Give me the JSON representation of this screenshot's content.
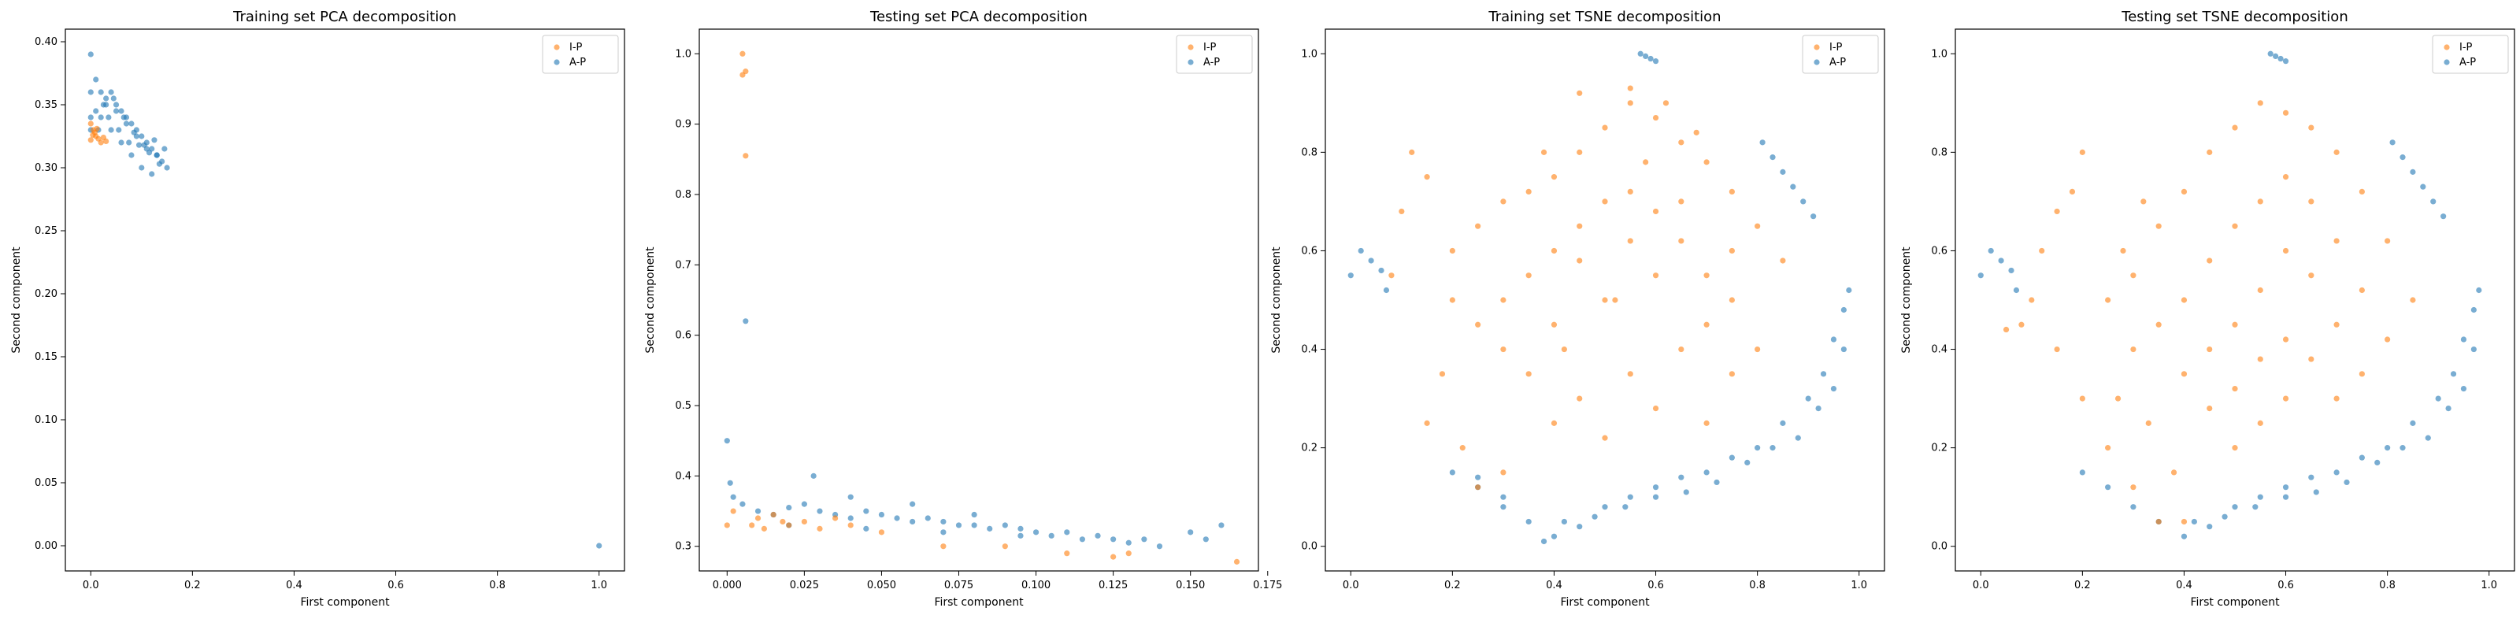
{
  "series_colors": {
    "I-P": "#ff7f0e",
    "A-P": "#1f77b4"
  },
  "chart_data": [
    {
      "type": "scatter",
      "title": "Training set PCA decomposition",
      "xlabel": "First component",
      "ylabel": "Second component",
      "xlim": [
        -0.05,
        1.05
      ],
      "ylim": [
        -0.02,
        0.41
      ],
      "xticks": [
        0.0,
        0.2,
        0.4,
        0.6,
        0.8,
        1.0
      ],
      "xtick_labels": [
        "0.0",
        "0.2",
        "0.4",
        "0.6",
        "0.8",
        "1.0"
      ],
      "yticks": [
        0.0,
        0.05,
        0.1,
        0.15,
        0.2,
        0.25,
        0.3,
        0.35,
        0.4
      ],
      "ytick_labels": [
        "0.00",
        "0.05",
        "0.10",
        "0.15",
        "0.20",
        "0.25",
        "0.30",
        "0.35",
        "0.40"
      ],
      "legend": [
        "I-P",
        "A-P"
      ],
      "legend_position": "top-right",
      "series": [
        {
          "name": "I-P",
          "x": [
            0.0,
            0.01,
            0.02,
            0.005,
            0.015,
            0.03,
            0.0,
            0.008,
            0.025,
            0.012,
            0.004
          ],
          "y": [
            0.322,
            0.325,
            0.32,
            0.33,
            0.323,
            0.321,
            0.335,
            0.328,
            0.324,
            0.331,
            0.326
          ]
        },
        {
          "name": "A-P",
          "x": [
            0.0,
            0.0,
            0.01,
            0.02,
            0.03,
            0.04,
            0.05,
            0.06,
            0.07,
            0.08,
            0.09,
            0.1,
            0.11,
            0.12,
            0.13,
            0.14,
            0.15,
            0.02,
            0.04,
            0.06,
            0.08,
            0.1,
            0.12,
            0.03,
            0.05,
            0.07,
            0.09,
            0.11,
            0.13,
            0.015,
            0.035,
            0.055,
            0.075,
            0.095,
            0.115,
            0.135,
            0.0,
            0.01,
            0.025,
            0.045,
            0.065,
            0.085,
            0.105,
            0.125,
            0.145,
            0.0,
            1.0
          ],
          "y": [
            0.39,
            0.36,
            0.37,
            0.36,
            0.35,
            0.36,
            0.35,
            0.345,
            0.34,
            0.335,
            0.33,
            0.325,
            0.32,
            0.315,
            0.31,
            0.305,
            0.3,
            0.34,
            0.33,
            0.32,
            0.31,
            0.3,
            0.295,
            0.355,
            0.345,
            0.335,
            0.325,
            0.315,
            0.31,
            0.33,
            0.34,
            0.33,
            0.32,
            0.318,
            0.312,
            0.303,
            0.34,
            0.345,
            0.35,
            0.355,
            0.34,
            0.328,
            0.318,
            0.322,
            0.315,
            0.33,
            0.0
          ]
        }
      ]
    },
    {
      "type": "scatter",
      "title": "Testing set PCA decomposition",
      "xlabel": "First component",
      "ylabel": "Second component",
      "xlim": [
        -0.009,
        0.172
      ],
      "ylim": [
        0.265,
        1.035
      ],
      "xticks": [
        0.0,
        0.025,
        0.05,
        0.075,
        0.1,
        0.125,
        0.15,
        0.175
      ],
      "xtick_labels": [
        "0.000",
        "0.025",
        "0.050",
        "0.075",
        "0.100",
        "0.125",
        "0.150",
        "0.175"
      ],
      "yticks": [
        0.3,
        0.4,
        0.5,
        0.6,
        0.7,
        0.8,
        0.9,
        1.0
      ],
      "ytick_labels": [
        "0.3",
        "0.4",
        "0.5",
        "0.6",
        "0.7",
        "0.8",
        "0.9",
        "1.0"
      ],
      "legend": [
        "I-P",
        "A-P"
      ],
      "legend_position": "top-right",
      "series": [
        {
          "name": "I-P",
          "x": [
            0.005,
            0.006,
            0.005,
            0.006,
            0.0,
            0.01,
            0.02,
            0.03,
            0.04,
            0.05,
            0.015,
            0.025,
            0.035,
            0.002,
            0.008,
            0.012,
            0.018,
            0.07,
            0.09,
            0.11,
            0.125,
            0.165,
            0.13
          ],
          "y": [
            1.0,
            0.975,
            0.97,
            0.855,
            0.33,
            0.34,
            0.33,
            0.325,
            0.33,
            0.32,
            0.345,
            0.335,
            0.34,
            0.35,
            0.33,
            0.325,
            0.335,
            0.3,
            0.3,
            0.29,
            0.285,
            0.278,
            0.29
          ]
        },
        {
          "name": "A-P",
          "x": [
            0.006,
            0.0,
            0.001,
            0.002,
            0.005,
            0.01,
            0.015,
            0.02,
            0.025,
            0.03,
            0.035,
            0.04,
            0.045,
            0.05,
            0.055,
            0.06,
            0.065,
            0.07,
            0.075,
            0.08,
            0.085,
            0.09,
            0.095,
            0.1,
            0.105,
            0.11,
            0.115,
            0.12,
            0.125,
            0.13,
            0.135,
            0.14,
            0.15,
            0.155,
            0.16,
            0.028,
            0.04,
            0.06,
            0.08,
            0.02,
            0.045,
            0.07,
            0.095
          ],
          "y": [
            0.62,
            0.45,
            0.39,
            0.37,
            0.36,
            0.35,
            0.345,
            0.355,
            0.36,
            0.35,
            0.345,
            0.34,
            0.35,
            0.345,
            0.34,
            0.335,
            0.34,
            0.335,
            0.33,
            0.33,
            0.325,
            0.33,
            0.325,
            0.32,
            0.315,
            0.32,
            0.31,
            0.315,
            0.31,
            0.305,
            0.31,
            0.3,
            0.32,
            0.31,
            0.33,
            0.4,
            0.37,
            0.36,
            0.345,
            0.33,
            0.325,
            0.32,
            0.315
          ]
        }
      ]
    },
    {
      "type": "scatter",
      "title": "Training set TSNE decomposition",
      "xlabel": "First component",
      "ylabel": "Second component",
      "xlim": [
        -0.05,
        1.05
      ],
      "ylim": [
        -0.05,
        1.05
      ],
      "xticks": [
        0.0,
        0.2,
        0.4,
        0.6,
        0.8,
        1.0
      ],
      "xtick_labels": [
        "0.0",
        "0.2",
        "0.4",
        "0.6",
        "0.8",
        "1.0"
      ],
      "yticks": [
        0.0,
        0.2,
        0.4,
        0.6,
        0.8,
        1.0
      ],
      "ytick_labels": [
        "0.0",
        "0.2",
        "0.4",
        "0.6",
        "0.8",
        "1.0"
      ],
      "legend": [
        "I-P",
        "A-P"
      ],
      "legend_position": "top-right",
      "series": [
        {
          "name": "I-P",
          "x": [
            0.2,
            0.25,
            0.3,
            0.35,
            0.4,
            0.45,
            0.5,
            0.55,
            0.6,
            0.65,
            0.7,
            0.75,
            0.8,
            0.85,
            0.3,
            0.35,
            0.4,
            0.45,
            0.5,
            0.55,
            0.6,
            0.65,
            0.7,
            0.75,
            0.25,
            0.3,
            0.4,
            0.5,
            0.6,
            0.7,
            0.8,
            0.35,
            0.45,
            0.55,
            0.65,
            0.75,
            0.4,
            0.5,
            0.6,
            0.7,
            0.45,
            0.55,
            0.65,
            0.12,
            0.15,
            0.1,
            0.08,
            0.2,
            0.18,
            0.15,
            0.22,
            0.3,
            0.25,
            0.45,
            0.55,
            0.62,
            0.68,
            0.75,
            0.38,
            0.42,
            0.52,
            0.58
          ],
          "y": [
            0.6,
            0.65,
            0.7,
            0.72,
            0.75,
            0.8,
            0.85,
            0.9,
            0.87,
            0.82,
            0.78,
            0.72,
            0.65,
            0.58,
            0.5,
            0.55,
            0.6,
            0.65,
            0.7,
            0.72,
            0.68,
            0.62,
            0.55,
            0.5,
            0.45,
            0.4,
            0.45,
            0.5,
            0.55,
            0.45,
            0.4,
            0.35,
            0.3,
            0.35,
            0.4,
            0.35,
            0.25,
            0.22,
            0.28,
            0.25,
            0.58,
            0.62,
            0.7,
            0.8,
            0.75,
            0.68,
            0.55,
            0.5,
            0.35,
            0.25,
            0.2,
            0.15,
            0.12,
            0.92,
            0.93,
            0.9,
            0.84,
            0.6,
            0.8,
            0.4,
            0.5,
            0.78
          ]
        },
        {
          "name": "A-P",
          "x": [
            0.57,
            0.58,
            0.59,
            0.6,
            0.81,
            0.83,
            0.85,
            0.87,
            0.89,
            0.91,
            0.0,
            0.02,
            0.04,
            0.06,
            0.07,
            0.2,
            0.25,
            0.3,
            0.35,
            0.4,
            0.45,
            0.5,
            0.55,
            0.6,
            0.65,
            0.7,
            0.75,
            0.8,
            0.85,
            0.9,
            0.93,
            0.95,
            0.97,
            0.98,
            0.97,
            0.95,
            0.92,
            0.88,
            0.83,
            0.78,
            0.72,
            0.66,
            0.6,
            0.54,
            0.48,
            0.42,
            0.38,
            0.3,
            0.25
          ],
          "y": [
            1.0,
            0.995,
            0.99,
            0.985,
            0.82,
            0.79,
            0.76,
            0.73,
            0.7,
            0.67,
            0.55,
            0.6,
            0.58,
            0.56,
            0.52,
            0.15,
            0.12,
            0.08,
            0.05,
            0.02,
            0.04,
            0.08,
            0.1,
            0.12,
            0.14,
            0.15,
            0.18,
            0.2,
            0.25,
            0.3,
            0.35,
            0.42,
            0.48,
            0.52,
            0.4,
            0.32,
            0.28,
            0.22,
            0.2,
            0.17,
            0.13,
            0.11,
            0.1,
            0.08,
            0.06,
            0.05,
            0.01,
            0.1,
            0.14
          ]
        }
      ]
    },
    {
      "type": "scatter",
      "title": "Testing set TSNE decomposition",
      "xlabel": "First component",
      "ylabel": "Second component",
      "xlim": [
        -0.05,
        1.05
      ],
      "ylim": [
        -0.05,
        1.05
      ],
      "xticks": [
        0.0,
        0.2,
        0.4,
        0.6,
        0.8,
        1.0
      ],
      "xtick_labels": [
        "0.0",
        "0.2",
        "0.4",
        "0.6",
        "0.8",
        "1.0"
      ],
      "yticks": [
        0.0,
        0.2,
        0.4,
        0.6,
        0.8,
        1.0
      ],
      "ytick_labels": [
        "0.0",
        "0.2",
        "0.4",
        "0.6",
        "0.8",
        "1.0"
      ],
      "legend": [
        "I-P",
        "A-P"
      ],
      "legend_position": "top-right",
      "series": [
        {
          "name": "I-P",
          "x": [
            0.3,
            0.35,
            0.4,
            0.45,
            0.5,
            0.55,
            0.6,
            0.65,
            0.7,
            0.75,
            0.8,
            0.85,
            0.35,
            0.4,
            0.45,
            0.5,
            0.55,
            0.6,
            0.65,
            0.7,
            0.75,
            0.8,
            0.4,
            0.45,
            0.5,
            0.55,
            0.6,
            0.65,
            0.7,
            0.75,
            0.45,
            0.5,
            0.55,
            0.6,
            0.65,
            0.7,
            0.5,
            0.55,
            0.6,
            0.3,
            0.28,
            0.32,
            0.25,
            0.27,
            0.15,
            0.18,
            0.2,
            0.12,
            0.1,
            0.08,
            0.05,
            0.15,
            0.2,
            0.25,
            0.3,
            0.35,
            0.4,
            0.38,
            0.33
          ],
          "y": [
            0.55,
            0.65,
            0.72,
            0.8,
            0.85,
            0.9,
            0.88,
            0.85,
            0.8,
            0.72,
            0.62,
            0.5,
            0.45,
            0.5,
            0.58,
            0.65,
            0.7,
            0.75,
            0.7,
            0.62,
            0.52,
            0.42,
            0.35,
            0.4,
            0.45,
            0.52,
            0.6,
            0.55,
            0.45,
            0.35,
            0.28,
            0.32,
            0.38,
            0.42,
            0.38,
            0.3,
            0.2,
            0.25,
            0.3,
            0.4,
            0.6,
            0.7,
            0.5,
            0.3,
            0.68,
            0.72,
            0.8,
            0.6,
            0.5,
            0.45,
            0.44,
            0.4,
            0.3,
            0.2,
            0.12,
            0.05,
            0.05,
            0.15,
            0.25
          ]
        },
        {
          "name": "A-P",
          "x": [
            0.57,
            0.58,
            0.59,
            0.6,
            0.81,
            0.83,
            0.85,
            0.87,
            0.89,
            0.91,
            0.0,
            0.02,
            0.04,
            0.06,
            0.07,
            0.2,
            0.25,
            0.3,
            0.35,
            0.4,
            0.45,
            0.5,
            0.55,
            0.6,
            0.65,
            0.7,
            0.75,
            0.8,
            0.85,
            0.9,
            0.93,
            0.95,
            0.97,
            0.98,
            0.97,
            0.95,
            0.92,
            0.88,
            0.83,
            0.78,
            0.72,
            0.66,
            0.6,
            0.54,
            0.48,
            0.42
          ],
          "y": [
            1.0,
            0.995,
            0.99,
            0.985,
            0.82,
            0.79,
            0.76,
            0.73,
            0.7,
            0.67,
            0.55,
            0.6,
            0.58,
            0.56,
            0.52,
            0.15,
            0.12,
            0.08,
            0.05,
            0.02,
            0.04,
            0.08,
            0.1,
            0.12,
            0.14,
            0.15,
            0.18,
            0.2,
            0.25,
            0.3,
            0.35,
            0.42,
            0.48,
            0.52,
            0.4,
            0.32,
            0.28,
            0.22,
            0.2,
            0.17,
            0.13,
            0.11,
            0.1,
            0.08,
            0.06,
            0.05
          ]
        }
      ]
    }
  ]
}
